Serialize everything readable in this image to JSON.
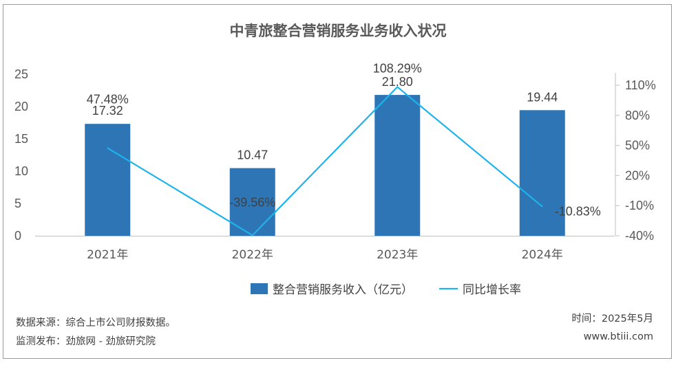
{
  "chart_data": {
    "type": "bar",
    "title": "中青旅整合营销服务业务收入状况",
    "categories": [
      "2021年",
      "2022年",
      "2023年",
      "2024年"
    ],
    "series": [
      {
        "name": "整合营销服务收入（亿元）",
        "type": "bar",
        "axis": "left",
        "color": "#2E75B6",
        "values": [
          17.32,
          10.47,
          21.8,
          19.44
        ],
        "labels": [
          "17.32",
          "10.47",
          "21.80",
          "19.44"
        ]
      },
      {
        "name": "同比增长率",
        "type": "line",
        "axis": "right",
        "color": "#1EB3EA",
        "values": [
          47.48,
          -39.56,
          108.29,
          -10.83
        ],
        "labels": [
          "47.48%",
          "-39.56%",
          "108.29%",
          "-10.83%"
        ]
      }
    ],
    "y_left": {
      "ylim": [
        0,
        25
      ],
      "ticks": [
        0,
        5,
        10,
        15,
        20,
        25
      ],
      "tick_labels": [
        "0",
        "5",
        "10",
        "15",
        "20",
        "25"
      ]
    },
    "y_right": {
      "ticks": [
        -40,
        -10,
        20,
        50,
        80,
        110
      ],
      "tick_labels": [
        "-40%",
        "-10%",
        "20%",
        "50%",
        "80%",
        "110%"
      ]
    },
    "grid": false,
    "legend_position": "bottom"
  },
  "footer": {
    "source": "数据来源：综合上市公司财报数据。",
    "monitor": "监测发布：劲旅网 - 劲旅研究院",
    "time": "时间：2025年5月",
    "website": "www.btiii.com"
  }
}
